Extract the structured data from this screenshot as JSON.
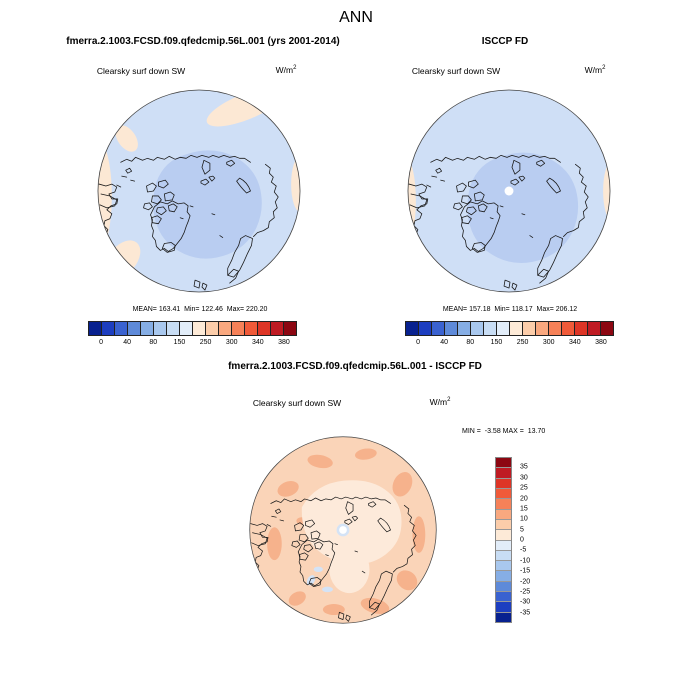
{
  "title": "ANN",
  "panels": {
    "model": {
      "header": "fmerra.2.1003.FCSD.f09.qfedcmip.56L.001 (yrs 2001-2014)",
      "field_label": "Clearsky surf down SW",
      "units": "W/m",
      "units_exp": "2",
      "stats": "MEAN= 163.41  Min= 122.46  Max= 220.20"
    },
    "obs": {
      "header": "ISCCP FD",
      "field_label": "Clearsky surf down SW",
      "units": "W/m",
      "units_exp": "2",
      "stats": "MEAN= 157.18  Min= 118.17  Max= 206.12"
    },
    "diff": {
      "header": "fmerra.2.1003.FCSD.f09.qfedcmip.56L.001 - ISCCP FD",
      "field_label": "Clearsky surf down SW",
      "units": "W/m",
      "units_exp": "2",
      "stats": "MIN =  -3.58 MAX =  13.70"
    }
  },
  "colorbar_abs": {
    "labels": [
      "0",
      "40",
      "80",
      "150",
      "250",
      "300",
      "340",
      "380"
    ],
    "colors": [
      "#08218f",
      "#1d3ec0",
      "#3a62d0",
      "#5e8ad9",
      "#86aee5",
      "#a9c8ee",
      "#c8ddf4",
      "#e2edf9",
      "#fdead7",
      "#fccdaa",
      "#f9a87f",
      "#f68158",
      "#f05a39",
      "#de3526",
      "#bf1b23",
      "#8c0712"
    ]
  },
  "colorbar_diff": {
    "labels": [
      "35",
      "30",
      "25",
      "20",
      "15",
      "10",
      "5",
      "0",
      "-5",
      "-10",
      "-15",
      "-20",
      "-25",
      "-30",
      "-35"
    ],
    "colors": [
      "#8c0712",
      "#bf1b23",
      "#de3526",
      "#f05a39",
      "#f68158",
      "#f9a87f",
      "#fccdaa",
      "#fdead7",
      "#e2edf9",
      "#c8ddf4",
      "#a9c8ee",
      "#86aee5",
      "#5e8ad9",
      "#3a62d0",
      "#1d3ec0",
      "#08218f"
    ]
  },
  "map_colors": {
    "abs_base": "#cfdff6",
    "abs_inner": "#b9cdf1",
    "abs_warm": "#fce8d4",
    "diff_base": "#fad4b8",
    "diff_mid": "#f6b28c",
    "diff_light": "#fdeada",
    "diff_blue": "#d4e3f6",
    "pole_white": "#ffffff",
    "coast": "#1a1a1a",
    "circle_edge": "#444444"
  },
  "chart_data": [
    {
      "type": "heatmap",
      "subtype": "north-polar-stereographic-map",
      "title": "fmerra.2.1003.FCSD.f09.qfedcmip.56L.001 (yrs 2001-2014)",
      "season": "ANN",
      "variable": "Clearsky surf down SW",
      "units": "W/m2",
      "stats": {
        "mean": 163.41,
        "min": 122.46,
        "max": 220.2
      },
      "colorbar_tick_labels": [
        0,
        40,
        80,
        150,
        250,
        300,
        340,
        380
      ],
      "colorbar_orientation": "horizontal",
      "value_pattern": "central Arctic ~80-150 (medium blue), surrounding ~150-250 (light blue), low-latitude rim patches 250-300 (cream)"
    },
    {
      "type": "heatmap",
      "subtype": "north-polar-stereographic-map",
      "title": "ISCCP FD",
      "season": "ANN",
      "variable": "Clearsky surf down SW",
      "units": "W/m2",
      "stats": {
        "mean": 157.18,
        "min": 118.17,
        "max": 206.12
      },
      "colorbar_tick_labels": [
        0,
        40,
        80,
        150,
        250,
        300,
        340,
        380
      ],
      "colorbar_orientation": "horizontal",
      "value_pattern": "same pattern as model with missing-data white dot at pole"
    },
    {
      "type": "heatmap",
      "subtype": "north-polar-stereographic-map",
      "title": "fmerra.2.1003.FCSD.f09.qfedcmip.56L.001 - ISCCP FD",
      "season": "ANN",
      "variable": "Clearsky surf down SW",
      "units": "W/m2",
      "stats": {
        "min": -3.58,
        "max": 13.7
      },
      "colorbar_tick_labels": [
        35,
        30,
        25,
        20,
        15,
        10,
        5,
        0,
        -5,
        -10,
        -15,
        -20,
        -25,
        -30,
        -35
      ],
      "colorbar_orientation": "vertical",
      "value_pattern": "mostly +5 to +15 (peach/salmon), near 0 (cream) over central Arctic, small negative (light blue) spots near pole and Baffin region"
    }
  ]
}
